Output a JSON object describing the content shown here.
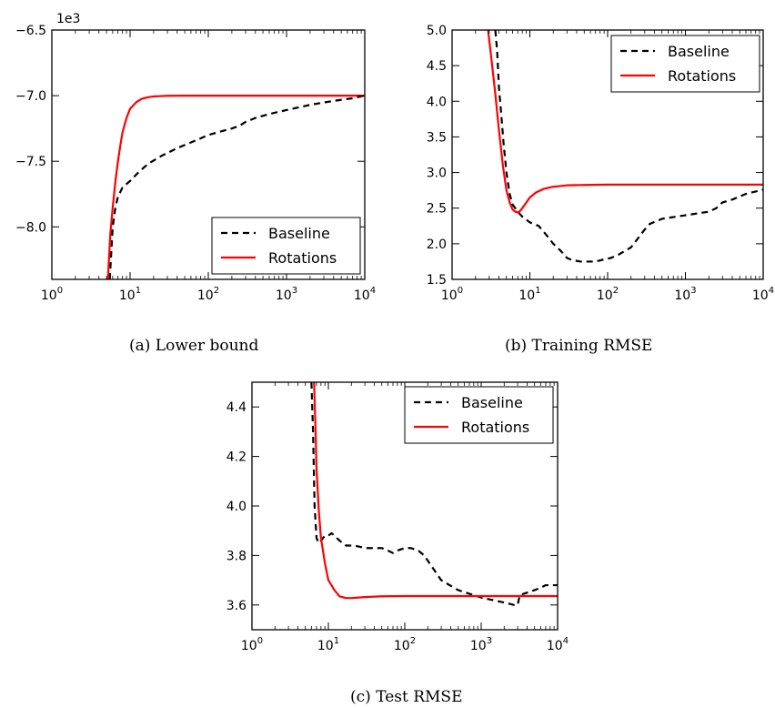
{
  "chart_data": [
    {
      "type": "line",
      "caption": "(a) Lower bound",
      "xscale": "log",
      "xlim": [
        1,
        10000
      ],
      "x_ticks": [
        1,
        10,
        100,
        1000,
        10000
      ],
      "ylim": [
        -8.4,
        -6.5
      ],
      "y_ticks": [
        -6.5,
        -7.0,
        -7.5,
        -8.0
      ],
      "y_tick_labels": [
        "−6.5",
        "−7.0",
        "−7.5",
        "−8.0"
      ],
      "y_offset_label": "1e3",
      "legend_position": "bottom-right",
      "series": [
        {
          "name": "Baseline",
          "style": "dashed",
          "color": "#000000",
          "x": [
            5.5,
            6,
            6.5,
            7,
            8,
            10,
            13,
            17,
            25,
            40,
            70,
            100,
            150,
            200,
            250,
            300,
            400,
            600,
            1000,
            2000,
            4000,
            7000,
            10000
          ],
          "y": [
            -8.4,
            -8.0,
            -7.85,
            -7.77,
            -7.7,
            -7.65,
            -7.58,
            -7.52,
            -7.46,
            -7.4,
            -7.34,
            -7.3,
            -7.27,
            -7.25,
            -7.23,
            -7.2,
            -7.17,
            -7.14,
            -7.11,
            -7.07,
            -7.04,
            -7.02,
            -7.0
          ]
        },
        {
          "name": "Rotations",
          "style": "solid",
          "color": "#ff0000",
          "x": [
            5.2,
            5.6,
            6,
            6.5,
            7,
            7.5,
            8,
            9,
            10,
            12,
            14,
            17,
            20,
            25,
            30,
            50,
            100,
            1000,
            10000
          ],
          "y": [
            -8.4,
            -8.05,
            -7.85,
            -7.65,
            -7.5,
            -7.38,
            -7.28,
            -7.17,
            -7.1,
            -7.05,
            -7.025,
            -7.012,
            -7.006,
            -7.003,
            -7.001,
            -7.0,
            -7.0,
            -7.0,
            -7.0
          ]
        }
      ]
    },
    {
      "type": "line",
      "caption": "(b) Training RMSE",
      "xscale": "log",
      "xlim": [
        1,
        10000
      ],
      "x_ticks": [
        1,
        10,
        100,
        1000,
        10000
      ],
      "ylim": [
        1.5,
        5.0
      ],
      "y_ticks": [
        1.5,
        2.0,
        2.5,
        3.0,
        3.5,
        4.0,
        4.5,
        5.0
      ],
      "y_tick_labels": [
        "1.5",
        "2.0",
        "2.5",
        "3.0",
        "3.5",
        "4.0",
        "4.5",
        "5.0"
      ],
      "legend_position": "top-right",
      "series": [
        {
          "name": "Baseline",
          "style": "dashed",
          "color": "#000000",
          "x": [
            3.6,
            3.8,
            4,
            4.3,
            4.6,
            5,
            5.5,
            6,
            7,
            8,
            10,
            13,
            17,
            20,
            25,
            30,
            35,
            45,
            60,
            70,
            90,
            110,
            140,
            200,
            300,
            350,
            500,
            1000,
            2000,
            2500,
            3000,
            4000,
            6000,
            10000
          ],
          "y": [
            5.0,
            4.7,
            4.2,
            3.8,
            3.4,
            3.0,
            2.7,
            2.55,
            2.45,
            2.38,
            2.3,
            2.25,
            2.1,
            2.0,
            1.9,
            1.8,
            1.77,
            1.75,
            1.75,
            1.75,
            1.78,
            1.8,
            1.85,
            1.95,
            2.2,
            2.28,
            2.35,
            2.4,
            2.45,
            2.5,
            2.58,
            2.62,
            2.7,
            2.76
          ]
        },
        {
          "name": "Rotations",
          "style": "solid",
          "color": "#ff0000",
          "x": [
            2.9,
            3.2,
            3.6,
            4,
            4.5,
            5,
            5.5,
            6,
            6.5,
            7,
            7.5,
            8,
            9,
            10,
            12,
            15,
            20,
            30,
            50,
            100,
            1000,
            10000
          ],
          "y": [
            5.0,
            4.6,
            4.1,
            3.6,
            3.1,
            2.75,
            2.58,
            2.48,
            2.45,
            2.44,
            2.46,
            2.5,
            2.58,
            2.65,
            2.72,
            2.77,
            2.8,
            2.82,
            2.825,
            2.83,
            2.83,
            2.83
          ]
        }
      ]
    },
    {
      "type": "line",
      "caption": "(c) Test RMSE",
      "xscale": "log",
      "xlim": [
        1,
        10000
      ],
      "x_ticks": [
        1,
        10,
        100,
        1000,
        10000
      ],
      "ylim": [
        3.5,
        4.5
      ],
      "y_ticks": [
        3.6,
        3.8,
        4.0,
        4.2,
        4.4
      ],
      "y_tick_labels": [
        "3.6",
        "3.8",
        "4.0",
        "4.2",
        "4.4"
      ],
      "legend_position": "top-right",
      "series": [
        {
          "name": "Baseline",
          "style": "dashed",
          "color": "#000000",
          "x": [
            6,
            6.3,
            6.6,
            7,
            7.5,
            8,
            9,
            10,
            11,
            12,
            14,
            17,
            22,
            30,
            40,
            50,
            60,
            70,
            80,
            100,
            120,
            150,
            180,
            220,
            300,
            500,
            1000,
            2000,
            2700,
            3000,
            3200,
            4000,
            5000,
            6000,
            7000,
            10000
          ],
          "y": [
            4.5,
            4.3,
            4.0,
            3.87,
            3.85,
            3.86,
            3.88,
            3.88,
            3.89,
            3.88,
            3.86,
            3.84,
            3.84,
            3.83,
            3.83,
            3.83,
            3.82,
            3.81,
            3.82,
            3.83,
            3.83,
            3.82,
            3.8,
            3.76,
            3.7,
            3.66,
            3.63,
            3.61,
            3.6,
            3.6,
            3.64,
            3.65,
            3.66,
            3.67,
            3.68,
            3.68
          ]
        },
        {
          "name": "Rotations",
          "style": "solid",
          "color": "#ff0000",
          "x": [
            6.5,
            6.8,
            7,
            7.5,
            8,
            9,
            10,
            12,
            14,
            17,
            20,
            30,
            50,
            100,
            1000,
            10000
          ],
          "y": [
            4.5,
            4.3,
            4.15,
            3.98,
            3.87,
            3.77,
            3.7,
            3.66,
            3.635,
            3.628,
            3.628,
            3.632,
            3.635,
            3.636,
            3.636,
            3.636
          ]
        }
      ]
    }
  ]
}
